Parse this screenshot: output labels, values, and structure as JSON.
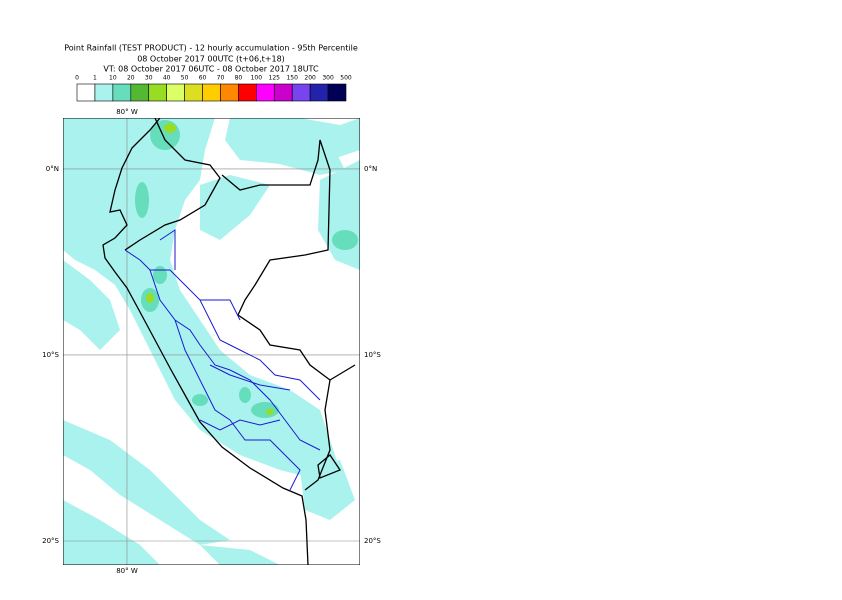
{
  "header": {
    "title": "Point Rainfall (TEST PRODUCT) - 12 hourly accumulation - 95th Percentile",
    "base_time": "08 October 2017 00UTC (t+06,t+18)",
    "valid_time": "VT: 08 October 2017 06UTC - 08 October 2017 18UTC"
  },
  "legend": {
    "levels": [
      0,
      1,
      10,
      20,
      30,
      40,
      50,
      60,
      70,
      80,
      100,
      125,
      150,
      200,
      300,
      500
    ],
    "colors": [
      "#ffffff",
      "#aaf2ee",
      "#66ddbb",
      "#55b833",
      "#99dd22",
      "#ddff66",
      "#dddd22",
      "#ffcc00",
      "#ff8800",
      "#ff0000",
      "#ff00ff",
      "#cc00cc",
      "#7744ee",
      "#2222aa",
      "#000055"
    ]
  },
  "map": {
    "lon_range": [
      -83.44,
      -67.47
    ],
    "lat_range": [
      2.74,
      -21.29
    ],
    "lon_lines": [
      {
        "value": -80,
        "label": "80° W"
      }
    ],
    "lat_lines": [
      {
        "value": 0,
        "label": "0°N"
      },
      {
        "value": -10,
        "label": "10°S"
      },
      {
        "value": -20,
        "label": "20°S"
      }
    ]
  }
}
